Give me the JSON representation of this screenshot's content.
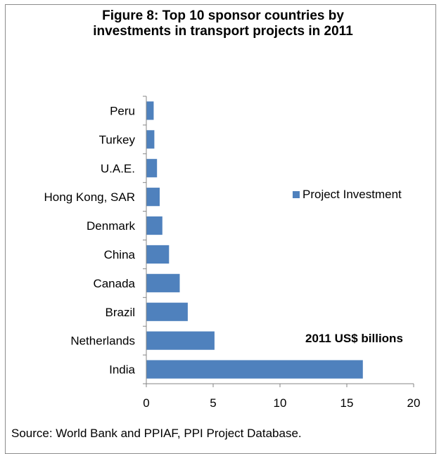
{
  "title_lines": [
    "Figure 8: Top 10 sponsor countries by",
    "investments in transport projects in 2011"
  ],
  "legend_label": "Project Investment",
  "units_label": "2011 US$ billions",
  "source": "Source:  World Bank and PPIAF, PPI Project Database.",
  "colors": {
    "bar": "#4f81bd",
    "axis": "#868686"
  },
  "chart_data": {
    "type": "bar",
    "orientation": "horizontal",
    "title": "Figure 8: Top 10 sponsor countries by investments in transport projects in 2011",
    "categories": [
      "India",
      "Netherlands",
      "Brazil",
      "Canada",
      "China",
      "Denmark",
      "Hong Kong, SAR",
      "U.A.E.",
      "Turkey",
      "Peru"
    ],
    "series": [
      {
        "name": "Project Investment",
        "values": [
          16.2,
          5.1,
          3.1,
          2.5,
          1.7,
          1.2,
          1.0,
          0.8,
          0.6,
          0.55
        ]
      }
    ],
    "xlim": [
      0,
      20
    ],
    "xticks": [
      0,
      5,
      10,
      15,
      20
    ],
    "xlabel": "",
    "ylabel": "",
    "grid": false,
    "legend": "right"
  }
}
